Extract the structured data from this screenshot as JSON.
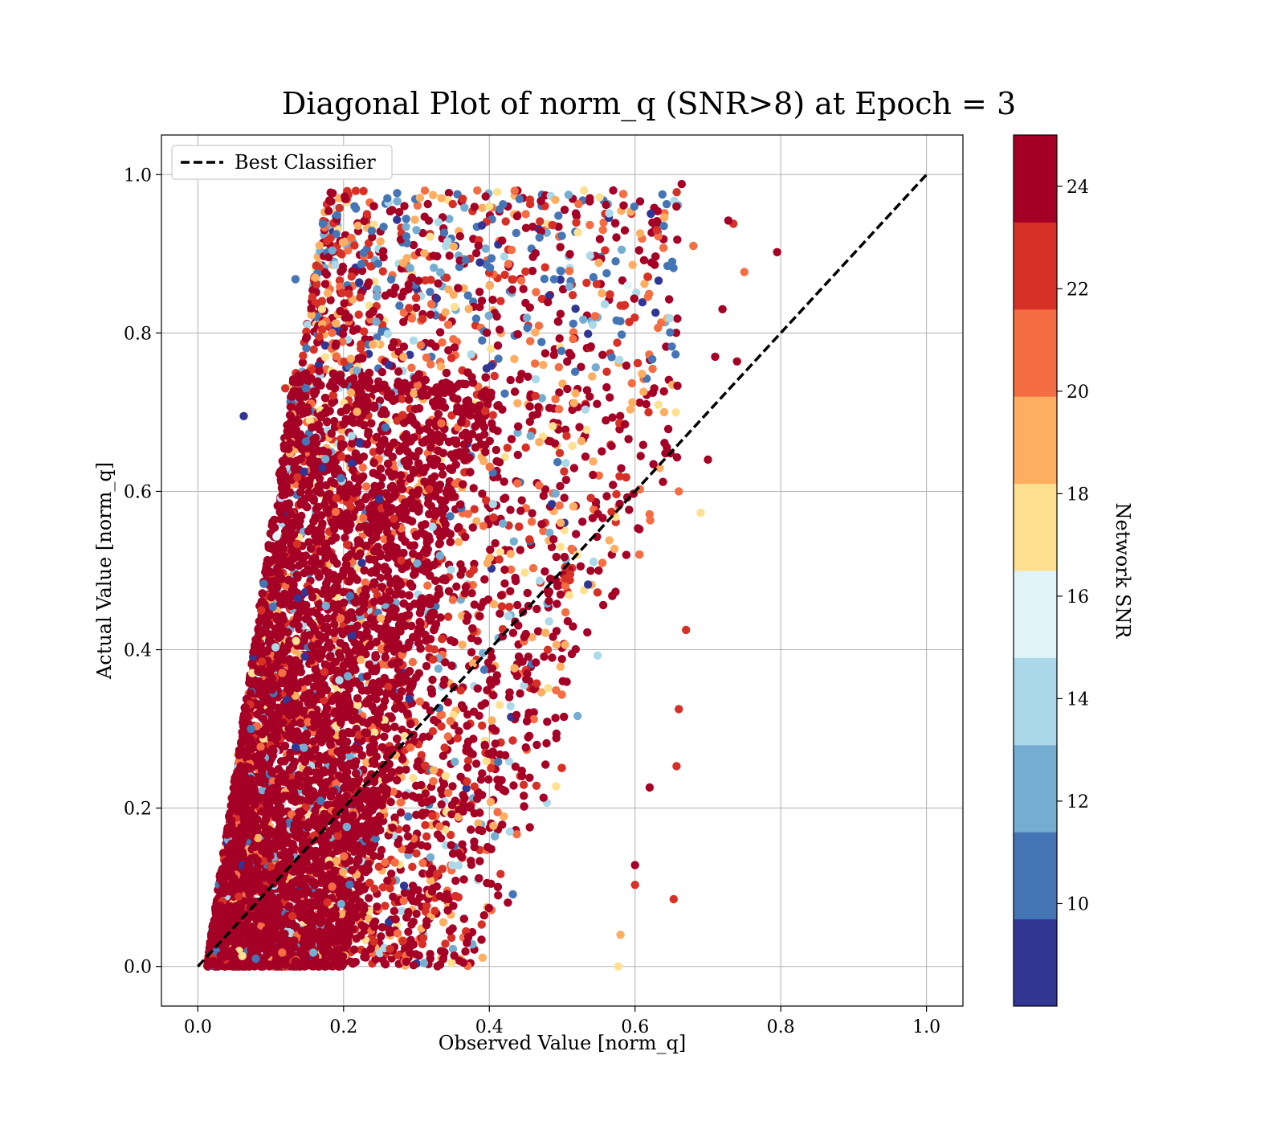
{
  "chart_data": {
    "type": "scatter",
    "title": "Diagonal Plot of norm_q (SNR>8) at Epoch = 3",
    "xlabel": "Observed Value [norm_q]",
    "ylabel": "Actual Value [norm_q]",
    "xlim": [
      -0.05,
      1.05
    ],
    "ylim": [
      -0.05,
      1.05
    ],
    "x_ticks": [
      "0.0",
      "0.2",
      "0.4",
      "0.6",
      "0.8",
      "1.0"
    ],
    "y_ticks": [
      "0.0",
      "0.2",
      "0.4",
      "0.6",
      "0.8",
      "1.0"
    ],
    "grid": true,
    "legend": {
      "placement": "top-left",
      "entries": [
        "Best Classifier"
      ]
    },
    "reference_line": {
      "name": "Best Classifier",
      "x": [
        0.0,
        1.0
      ],
      "y": [
        0.0,
        1.0
      ],
      "style": "dashed",
      "color": "#000000"
    },
    "colorbar": {
      "label": "Network SNR",
      "range": [
        8,
        25
      ],
      "ticks": [
        "10",
        "12",
        "14",
        "16",
        "18",
        "20",
        "22",
        "24"
      ],
      "tick_values": [
        10,
        12,
        14,
        16,
        18,
        20,
        22,
        24
      ],
      "levels": [
        "#313695",
        "#4575b4",
        "#74add1",
        "#abd9e9",
        "#e0f3f8",
        "#fee090",
        "#fdae61",
        "#f46d43",
        "#d73027",
        "#a50026"
      ]
    },
    "series": [
      {
        "description_points": "dense scatter of (observed, actual) pairs colored by Network SNR",
        "points": [
          [
            0.063,
            0.695,
            9
          ],
          [
            0.795,
            0.902,
            24
          ],
          [
            0.664,
            0.988,
            24
          ],
          [
            0.75,
            0.877,
            20
          ],
          [
            0.74,
            0.764,
            24
          ],
          [
            0.735,
            0.938,
            22
          ],
          [
            0.728,
            0.942,
            24
          ],
          [
            0.72,
            0.83,
            24
          ],
          [
            0.71,
            0.77,
            24
          ],
          [
            0.7,
            0.64,
            24
          ],
          [
            0.69,
            0.573,
            17
          ],
          [
            0.67,
            0.425,
            22
          ],
          [
            0.66,
            0.325,
            22
          ],
          [
            0.657,
            0.253,
            22
          ],
          [
            0.653,
            0.085,
            22
          ],
          [
            0.62,
            0.226,
            24
          ],
          [
            0.6,
            0.128,
            24
          ],
          [
            0.6,
            0.103,
            22
          ],
          [
            0.58,
            0.04,
            19
          ],
          [
            0.577,
            0.0,
            18
          ],
          [
            0.12,
            0.73,
            22
          ],
          [
            0.108,
            0.543,
            16
          ],
          [
            0.088,
            0.385,
            22
          ],
          [
            0.073,
            0.3,
            11
          ],
          [
            0.134,
            0.868,
            10
          ],
          [
            0.19,
            0.925,
            10
          ],
          [
            0.215,
            0.96,
            10
          ],
          [
            0.26,
            0.97,
            10
          ],
          [
            0.3,
            0.93,
            12
          ],
          [
            0.33,
            0.94,
            14
          ],
          [
            0.4,
            0.96,
            18
          ],
          [
            0.45,
            0.95,
            20
          ],
          [
            0.53,
            0.98,
            17
          ],
          [
            0.57,
            0.98,
            24
          ],
          [
            0.63,
            0.93,
            22
          ],
          [
            0.68,
            0.91,
            20
          ],
          [
            0.66,
            0.6,
            20
          ],
          [
            0.64,
            0.7,
            19
          ],
          [
            0.59,
            0.86,
            16
          ],
          [
            0.55,
            0.5,
            24
          ]
        ]
      }
    ]
  }
}
